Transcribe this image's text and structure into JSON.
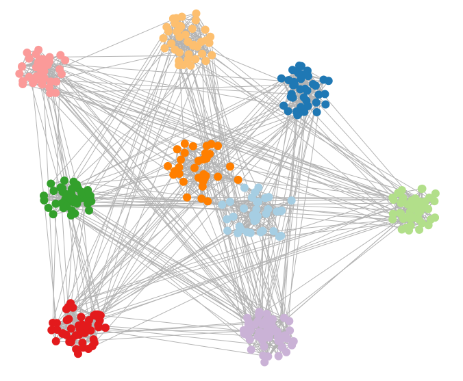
{
  "groups": [
    {
      "color": "#fb9a99"
    },
    {
      "color": "#fdbf6f"
    },
    {
      "color": "#1f78b4"
    },
    {
      "color": "#ff7f00"
    },
    {
      "color": "#33a02c"
    },
    {
      "color": "#a6cee3"
    },
    {
      "color": "#b2df8a"
    },
    {
      "color": "#e31a1c"
    },
    {
      "color": "#cab2d6"
    }
  ],
  "edge_color": "#b3b3b3"
}
